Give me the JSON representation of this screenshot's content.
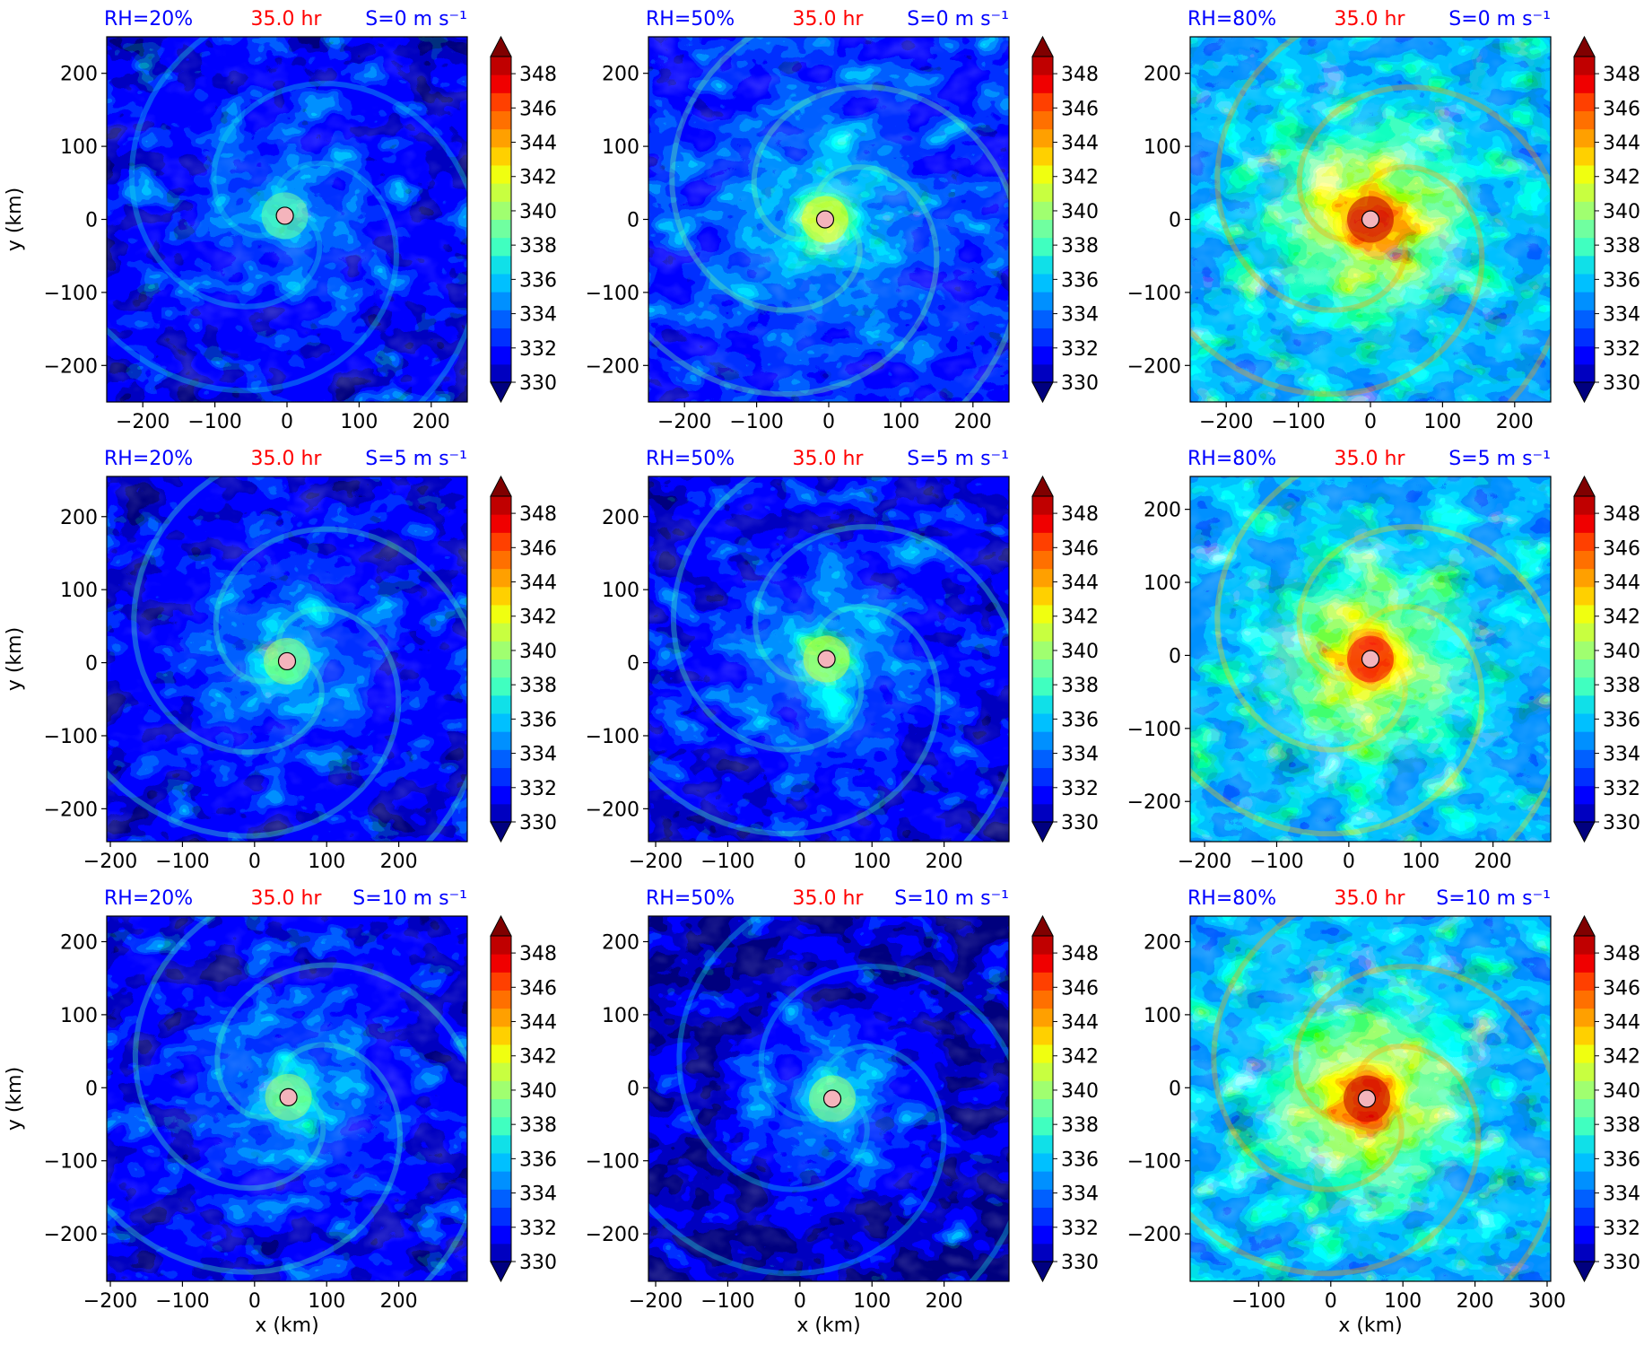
{
  "figure": {
    "time_label": "35.0 hr",
    "x_axis_label": "x (km)",
    "y_axis_label": "y (km)",
    "colorbar_ticks": [
      "330",
      "332",
      "334",
      "336",
      "338",
      "340",
      "342",
      "344",
      "346",
      "348"
    ],
    "colorbar_levels": [
      330,
      331,
      332,
      333,
      334,
      335,
      336,
      337,
      338,
      339,
      340,
      341,
      342,
      343,
      344,
      345,
      346,
      347,
      348,
      349,
      350
    ],
    "colormap": [
      "#00007f",
      "#0000c0",
      "#0000ff",
      "#0030ff",
      "#0060ff",
      "#0090ff",
      "#00c0ff",
      "#10e0e8",
      "#40ffc0",
      "#70ffa0",
      "#a0ff70",
      "#c8ff40",
      "#f0ff10",
      "#ffd000",
      "#ffa000",
      "#ff7000",
      "#ff4000",
      "#f00000",
      "#c00000",
      "#800000"
    ],
    "center_marker_color": "#f4b4bc",
    "title_colors": {
      "rh": "#0000ff",
      "time": "#ff0000",
      "shear": "#0000ff"
    }
  },
  "chart_data": [
    {
      "type": "heatmap",
      "rh": "RH=20%",
      "time": "35.0 hr",
      "shear": "S=0 m s⁻¹",
      "xlim": [
        -250,
        250
      ],
      "ylim": [
        -250,
        250
      ],
      "xticks": [
        -200,
        -100,
        0,
        100,
        200
      ],
      "yticks": [
        -200,
        -100,
        0,
        100,
        200
      ],
      "center": [
        -3,
        5
      ],
      "core_value": 339,
      "env_value": 334,
      "ylabel_shown": true,
      "xlabel_shown": false
    },
    {
      "type": "heatmap",
      "rh": "RH=50%",
      "time": "35.0 hr",
      "shear": "S=0 m s⁻¹",
      "xlim": [
        -250,
        250
      ],
      "ylim": [
        -250,
        250
      ],
      "xticks": [
        -200,
        -100,
        0,
        100,
        200
      ],
      "yticks": [
        -200,
        -100,
        0,
        100,
        200
      ],
      "center": [
        -5,
        0
      ],
      "core_value": 342,
      "env_value": 335,
      "ylabel_shown": false,
      "xlabel_shown": false
    },
    {
      "type": "heatmap",
      "rh": "RH=80%",
      "time": "35.0 hr",
      "shear": "S=0 m s⁻¹",
      "xlim": [
        -250,
        250
      ],
      "ylim": [
        -250,
        250
      ],
      "xticks": [
        -200,
        -100,
        0,
        100,
        200
      ],
      "yticks": [
        -200,
        -100,
        0,
        100,
        200
      ],
      "center": [
        0,
        0
      ],
      "core_value": 348,
      "env_value": 338,
      "ylabel_shown": false,
      "xlabel_shown": false
    },
    {
      "type": "heatmap",
      "rh": "RH=20%",
      "time": "35.0 hr",
      "shear": "S=5 m s⁻¹",
      "xlim": [
        -205,
        295
      ],
      "ylim": [
        -245,
        255
      ],
      "xticks": [
        -200,
        -100,
        0,
        100,
        200
      ],
      "yticks": [
        -200,
        -100,
        0,
        100,
        200
      ],
      "center": [
        45,
        2
      ],
      "core_value": 340,
      "env_value": 334,
      "ylabel_shown": true,
      "xlabel_shown": false
    },
    {
      "type": "heatmap",
      "rh": "RH=50%",
      "time": "35.0 hr",
      "shear": "S=5 m s⁻¹",
      "xlim": [
        -210,
        290
      ],
      "ylim": [
        -245,
        255
      ],
      "xticks": [
        -200,
        -100,
        0,
        100,
        200
      ],
      "yticks": [
        -200,
        -100,
        0,
        100,
        200
      ],
      "center": [
        37,
        5
      ],
      "core_value": 341,
      "env_value": 334,
      "ylabel_shown": false,
      "xlabel_shown": false
    },
    {
      "type": "heatmap",
      "rh": "RH=80%",
      "time": "35.0 hr",
      "shear": "S=5 m s⁻¹",
      "xlim": [
        -220,
        280
      ],
      "ylim": [
        -255,
        245
      ],
      "xticks": [
        -200,
        -100,
        0,
        100,
        200
      ],
      "yticks": [
        -200,
        -100,
        0,
        100,
        200
      ],
      "center": [
        30,
        -5
      ],
      "core_value": 347,
      "env_value": 338,
      "ylabel_shown": false,
      "xlabel_shown": false
    },
    {
      "type": "heatmap",
      "rh": "RH=20%",
      "time": "35.0 hr",
      "shear": "S=10 m s⁻¹",
      "xlim": [
        -205,
        295
      ],
      "ylim": [
        -265,
        235
      ],
      "xticks": [
        -200,
        -100,
        0,
        100,
        200
      ],
      "yticks": [
        -200,
        -100,
        0,
        100,
        200
      ],
      "center": [
        47,
        -13
      ],
      "core_value": 340,
      "env_value": 334,
      "ylabel_shown": true,
      "xlabel_shown": true
    },
    {
      "type": "heatmap",
      "rh": "RH=50%",
      "time": "35.0 hr",
      "shear": "S=10 m s⁻¹",
      "xlim": [
        -210,
        290
      ],
      "ylim": [
        -265,
        235
      ],
      "xticks": [
        -200,
        -100,
        0,
        100,
        200
      ],
      "yticks": [
        -200,
        -100,
        0,
        100,
        200
      ],
      "center": [
        45,
        -15
      ],
      "core_value": 340,
      "env_value": 333,
      "ylabel_shown": false,
      "xlabel_shown": true
    },
    {
      "type": "heatmap",
      "rh": "RH=80%",
      "time": "35.0 hr",
      "shear": "S=10 m s⁻¹",
      "xlim": [
        -195,
        305
      ],
      "ylim": [
        -265,
        235
      ],
      "xticks": [
        -100,
        0,
        100,
        200,
        300
      ],
      "yticks": [
        -200,
        -100,
        0,
        100,
        200
      ],
      "center": [
        50,
        -15
      ],
      "core_value": 348,
      "env_value": 338,
      "ylabel_shown": false,
      "xlabel_shown": true
    }
  ]
}
